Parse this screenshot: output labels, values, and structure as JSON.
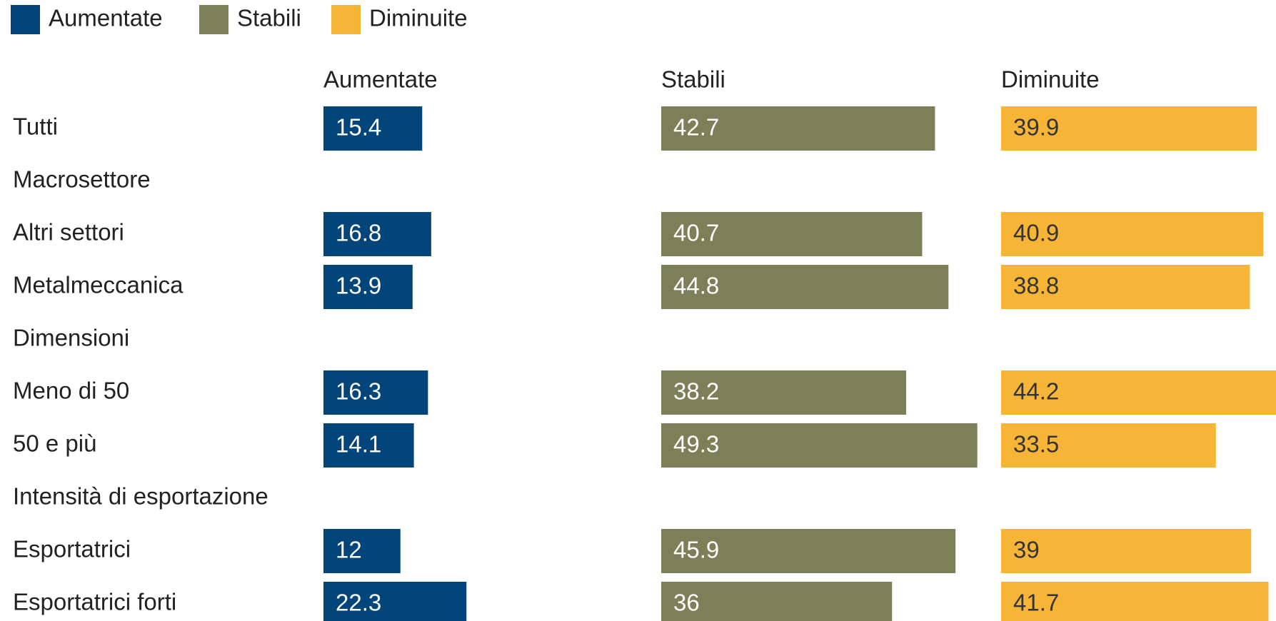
{
  "chart_data": {
    "type": "bar",
    "categories": [
      "Tutti",
      "Macrosettore",
      "Altri settori",
      "Metalmeccanica",
      "Dimensioni",
      "Meno di 50",
      "50 e più",
      "Intensità di esportazione",
      "Esportatrici",
      "Esportatrici forti"
    ],
    "series": [
      {
        "name": "Aumentate",
        "color": "#02457a",
        "values": [
          15.4,
          null,
          16.8,
          13.9,
          null,
          16.3,
          14.1,
          null,
          12,
          22.3
        ]
      },
      {
        "name": "Stabili",
        "color": "#7c7f58",
        "values": [
          42.7,
          null,
          40.7,
          44.8,
          null,
          38.2,
          49.3,
          null,
          45.9,
          36
        ]
      },
      {
        "name": "Diminuite",
        "color": "#f7b538",
        "values": [
          39.9,
          null,
          40.9,
          38.8,
          null,
          44.2,
          33.5,
          null,
          39,
          41.7
        ]
      }
    ],
    "legend": "top-left"
  }
}
